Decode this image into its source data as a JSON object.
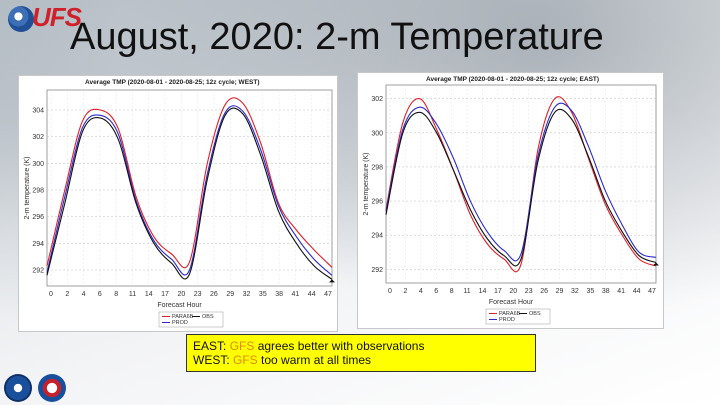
{
  "slide": {
    "title": "August, 2020:  2-m Temperature",
    "logo_text": "UFS",
    "notes": {
      "east_prefix": "EAST: ",
      "east_gfs": "GFS",
      "east_rest": " agrees better with observations",
      "west_prefix": "WEST: ",
      "west_gfs": "GFS",
      "west_rest": "  too warm at all times"
    }
  },
  "colors": {
    "parallel": "#e0202a",
    "prod": "#2a2acc",
    "obs": "#111111",
    "note_bg": "#ffff00",
    "gfs_text": "#e08a00"
  },
  "chart_data": [
    {
      "type": "line",
      "title": "Average TMP (2020-08-01 - 2020-08-25; 12z cycle; WEST)",
      "xlabel": "Forecast Hour",
      "ylabel": "2-m temperature (K)",
      "x_ticks": [
        "0",
        "2",
        "4",
        "6",
        "8",
        "11",
        "14",
        "17",
        "20",
        "23",
        "26",
        "29",
        "32",
        "35",
        "38",
        "41",
        "44",
        "47"
      ],
      "y_ticks": [
        292,
        294,
        296,
        298,
        300,
        302,
        304
      ],
      "xlim": [
        0,
        48
      ],
      "ylim": [
        290.8,
        305.5
      ],
      "x": [
        0,
        3,
        6,
        9,
        12,
        15,
        18,
        21,
        24,
        27,
        30,
        33,
        36,
        39,
        42,
        45,
        48
      ],
      "series": [
        {
          "name": "PARA6B",
          "color": "#e0202a",
          "values": [
            292.3,
            298.0,
            303.2,
            304.0,
            302.6,
            297.5,
            294.5,
            293.2,
            292.6,
            300.0,
            304.4,
            304.5,
            301.5,
            297.0,
            295.0,
            293.5,
            292.2
          ]
        },
        {
          "name": "PROD",
          "color": "#2a2acc",
          "values": [
            291.8,
            297.5,
            302.7,
            303.6,
            302.2,
            297.2,
            294.2,
            292.8,
            292.0,
            299.2,
            303.8,
            303.9,
            301.0,
            296.8,
            294.5,
            292.8,
            291.6
          ]
        },
        {
          "name": "OBS",
          "color": "#111111",
          "values": [
            291.6,
            297.0,
            302.4,
            303.4,
            301.8,
            297.0,
            294.0,
            292.5,
            291.7,
            298.8,
            303.6,
            303.7,
            300.6,
            296.4,
            294.0,
            292.3,
            291.3
          ]
        }
      ],
      "legend": [
        "PARA6B",
        "OBS",
        "PROD"
      ],
      "legend_position": "bottom-left"
    },
    {
      "type": "line",
      "title": "Average TMP (2020-08-01 - 2020-08-25; 12z cycle; EAST)",
      "xlabel": "Forecast Hour",
      "ylabel": "2-m temperature (K)",
      "x_ticks": [
        "0",
        "2",
        "4",
        "6",
        "8",
        "11",
        "14",
        "17",
        "20",
        "23",
        "26",
        "29",
        "32",
        "35",
        "38",
        "41",
        "44",
        "47"
      ],
      "y_ticks": [
        292,
        294,
        296,
        298,
        300,
        302
      ],
      "xlim": [
        0,
        48
      ],
      "ylim": [
        291.2,
        302.8
      ],
      "x": [
        0,
        3,
        6,
        9,
        12,
        15,
        18,
        21,
        24,
        27,
        30,
        33,
        36,
        39,
        42,
        45,
        48
      ],
      "series": [
        {
          "name": "PARA6B",
          "color": "#e0202a",
          "values": [
            295.5,
            300.6,
            302.0,
            300.2,
            297.8,
            295.2,
            293.5,
            292.6,
            292.3,
            299.0,
            302.0,
            301.2,
            298.5,
            295.8,
            294.0,
            292.6,
            292.2
          ]
        },
        {
          "name": "PROD",
          "color": "#2a2acc",
          "values": [
            295.4,
            300.2,
            301.5,
            300.5,
            298.5,
            296.0,
            294.2,
            293.1,
            292.9,
            298.6,
            301.5,
            301.3,
            299.2,
            296.6,
            294.6,
            293.0,
            292.7
          ]
        },
        {
          "name": "OBS",
          "color": "#111111",
          "values": [
            295.2,
            300.0,
            301.2,
            300.0,
            297.8,
            295.5,
            293.8,
            292.8,
            292.6,
            298.3,
            301.2,
            300.8,
            298.6,
            296.0,
            294.2,
            292.8,
            292.4
          ]
        }
      ],
      "legend": [
        "PARA6B",
        "OBS",
        "PROD"
      ],
      "legend_position": "bottom-left"
    }
  ]
}
